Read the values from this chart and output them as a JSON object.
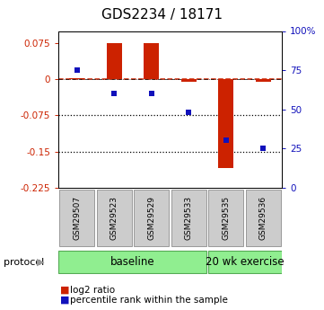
{
  "title": "GDS2234 / 18171",
  "samples": [
    "GSM29507",
    "GSM29523",
    "GSM29529",
    "GSM29533",
    "GSM29535",
    "GSM29536"
  ],
  "log2_ratio": [
    0.002,
    0.075,
    0.075,
    -0.005,
    -0.185,
    -0.005
  ],
  "percentile_rank": [
    75.0,
    60.0,
    60.0,
    48.0,
    30.0,
    25.0
  ],
  "ylim_left": [
    -0.225,
    0.1
  ],
  "ylim_right": [
    0,
    100
  ],
  "left_yticks": [
    0.075,
    0.0,
    -0.075,
    -0.15,
    -0.225
  ],
  "left_yticklabels": [
    "0.075",
    "0",
    "-0.075",
    "-0.15",
    "-0.225"
  ],
  "right_yticks": [
    100,
    75,
    50,
    25,
    0
  ],
  "right_yticklabels": [
    "100%",
    "75",
    "50",
    "25",
    "0"
  ],
  "hline_y": [
    -0.075,
    -0.15
  ],
  "bar_color": "#cc2200",
  "dot_color": "#1111bb",
  "bar_width": 0.4,
  "n_baseline": 4,
  "n_exercise": 2,
  "baseline_label": "baseline",
  "exercise_label": "20 wk exercise",
  "protocol_label": "protocol",
  "green_color": "#90ee90",
  "green_border": "#55aa55",
  "legend_log2": "log2 ratio",
  "legend_pct": "percentile rank within the sample",
  "fig_width": 3.61,
  "fig_height": 3.45,
  "dpi": 100
}
